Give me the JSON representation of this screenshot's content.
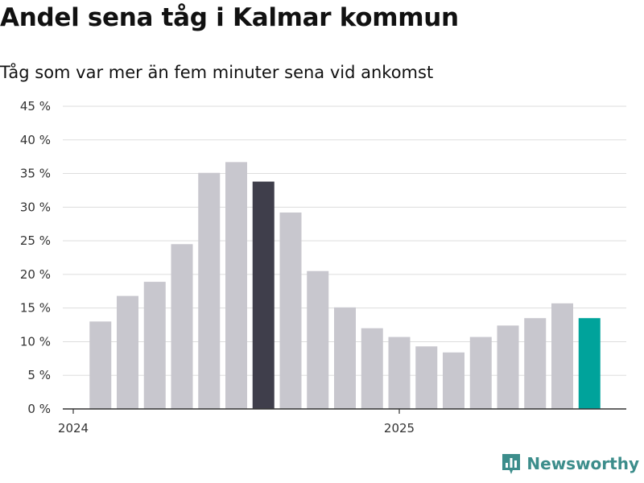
{
  "header": {
    "title": "Andel sena tåg i Kalmar kommun",
    "subtitle": "Tåg som var mer än fem minuter sena vid ankomst"
  },
  "brand": {
    "name": "Newsworthy",
    "icon": "bar-chart-logo-icon",
    "color": "#3c8d8b"
  },
  "colors": {
    "default_bar": "#c8c7ce",
    "highlight_bar": "#3f3e4b",
    "latest_bar": "#00a39b",
    "grid": "#dddddd",
    "axis": "#333333"
  },
  "chart_data": {
    "type": "bar",
    "title": "Andel sena tåg i Kalmar kommun",
    "subtitle": "Tåg som var mer än fem minuter sena vid ankomst",
    "x": [
      "2024-02",
      "2024-03",
      "2024-04",
      "2024-05",
      "2024-06",
      "2024-07",
      "2024-08",
      "2024-09",
      "2024-10",
      "2024-11",
      "2024-12",
      "2025-01",
      "2025-02",
      "2025-03",
      "2025-04",
      "2025-05",
      "2025-06",
      "2025-07",
      "2025-08"
    ],
    "values": [
      13.0,
      16.8,
      18.9,
      24.5,
      35.1,
      36.7,
      33.8,
      29.2,
      20.5,
      15.1,
      12.0,
      10.7,
      9.3,
      8.4,
      10.7,
      12.4,
      13.5,
      15.7,
      13.5
    ],
    "highlight_index": 6,
    "latest_index": 18,
    "x_ticks": [
      "2024",
      "2025"
    ],
    "x_tick_dates": [
      "2024-01",
      "2025-01"
    ],
    "y_ticks": [
      "0 %",
      "5 %",
      "10 %",
      "15 %",
      "20 %",
      "25 %",
      "30 %",
      "35 %",
      "40 %",
      "45 %"
    ],
    "ylim": [
      0,
      45
    ],
    "grid": true,
    "legend": "none"
  }
}
